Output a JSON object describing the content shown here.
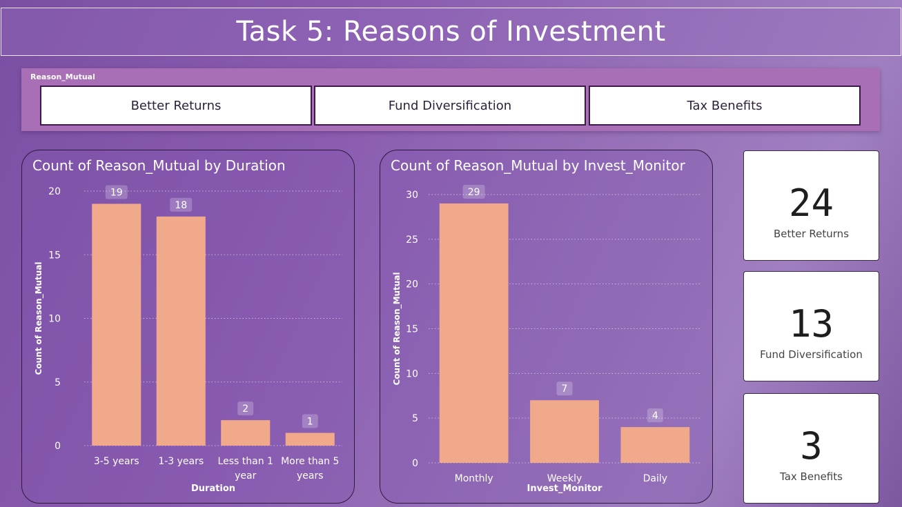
{
  "title": "Task 5: Reasons of Investment",
  "slicer": {
    "header": "Reason_Mutual",
    "options": [
      "Better Returns",
      "Fund Diversification",
      "Tax Benefits"
    ]
  },
  "chart_data": [
    {
      "type": "bar",
      "title": "Count of Reason_Mutual by Duration",
      "xlabel": "Duration",
      "ylabel": "Count of Reason_Mutual",
      "categories": [
        "3-5 years",
        "1-3 years",
        "Less than 1 year",
        "More than 5 years"
      ],
      "values": [
        19,
        18,
        2,
        1
      ],
      "ylim": [
        0,
        20
      ],
      "yticks": [
        0,
        5,
        10,
        15,
        20
      ],
      "grid": true,
      "bar_color": "#f0a98a"
    },
    {
      "type": "bar",
      "title": "Count of Reason_Mutual by Invest_Monitor",
      "xlabel": "Invest_Monitor",
      "ylabel": "Count of Reason_Mutual",
      "categories": [
        "Monthly",
        "Weekly",
        "Daily"
      ],
      "values": [
        29,
        7,
        4
      ],
      "ylim": [
        0,
        30
      ],
      "yticks": [
        0,
        5,
        10,
        15,
        20,
        25,
        30
      ],
      "grid": true,
      "bar_color": "#f0a98a"
    }
  ],
  "cards": [
    {
      "value": "24",
      "label": "Better Returns"
    },
    {
      "value": "13",
      "label": "Fund Diversification"
    },
    {
      "value": "3",
      "label": "Tax Benefits"
    }
  ]
}
